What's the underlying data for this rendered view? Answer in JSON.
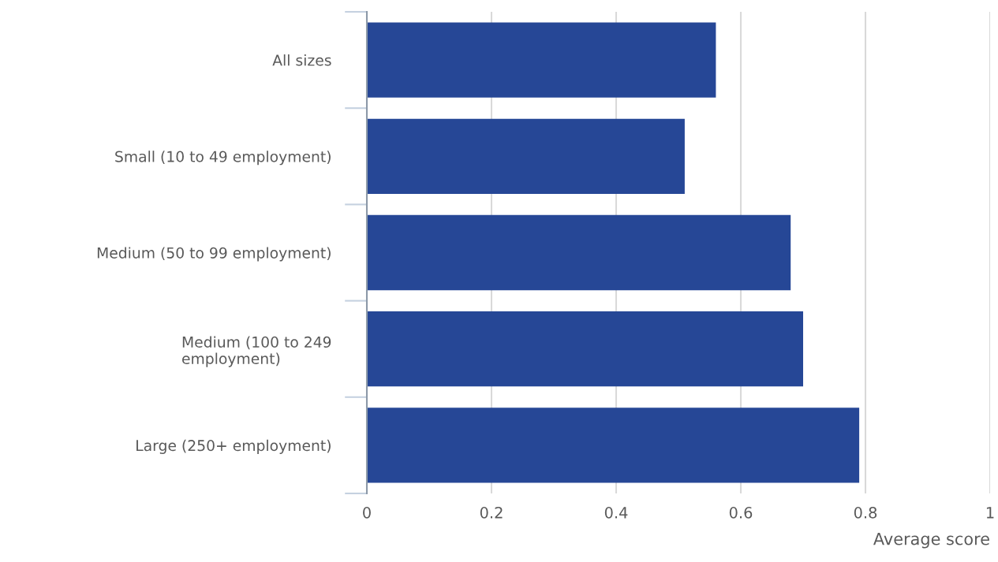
{
  "chart_data": {
    "type": "bar",
    "orientation": "horizontal",
    "categories": [
      "All sizes",
      "Small (10 to 49 employment)",
      "Medium (50 to 99 employment)",
      "Medium (100 to 249\nemployment)",
      "Large (250+ employment)"
    ],
    "values": [
      0.56,
      0.51,
      0.68,
      0.7,
      0.79
    ],
    "color": "#264796",
    "xlabel": "Average score",
    "xlim": [
      0,
      1
    ],
    "xticks": [
      0,
      0.2,
      0.4,
      0.6,
      0.8,
      1
    ],
    "grid": "x"
  }
}
